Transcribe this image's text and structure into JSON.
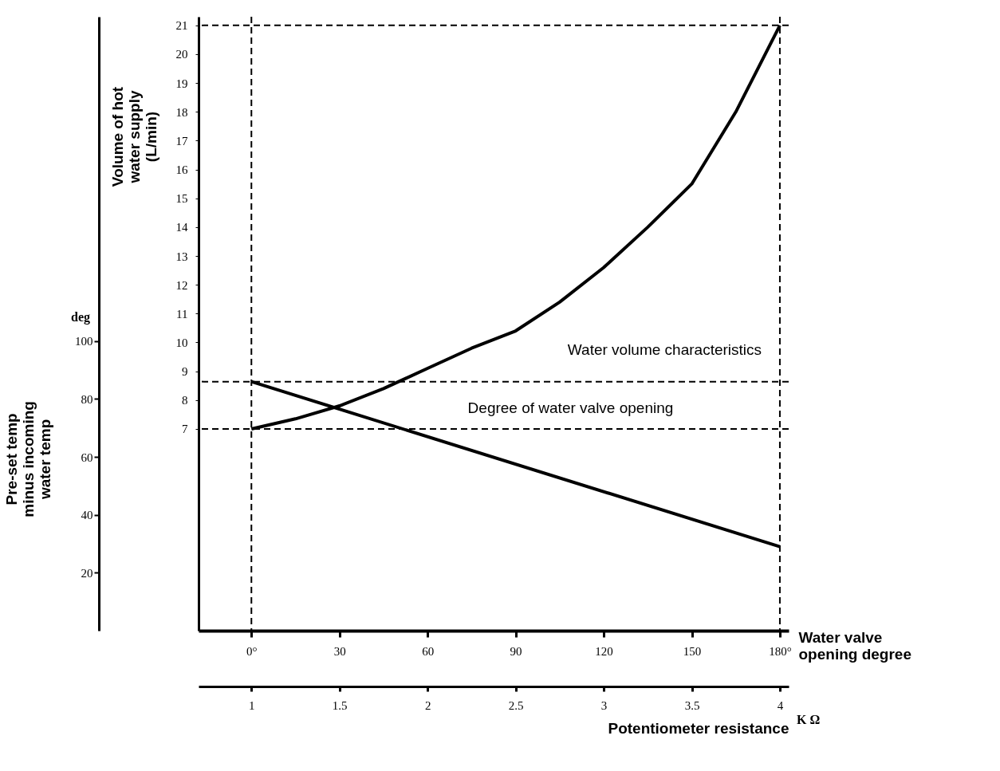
{
  "chart_data": {
    "type": "line",
    "xlabel": "Water valve opening degree",
    "ylabel": "Volume of hot water supply (L/min)",
    "y2label": "Pre-set temp minus incoming water temp",
    "x2label": "Potentiometer resistance",
    "annotations": [
      "deg",
      "K Ω"
    ],
    "series": [
      {
        "name": "Water volume characteristics",
        "color": "#000000",
        "x": [
          0,
          15,
          30,
          45,
          60,
          75,
          90,
          105,
          120,
          135,
          150,
          165,
          180
        ],
        "values": [
          7.0,
          7.35,
          7.8,
          8.4,
          9.1,
          9.8,
          10.4,
          11.4,
          12.6,
          14.0,
          15.5,
          18.0,
          21.0
        ]
      },
      {
        "name": "Degree of water valve opening",
        "color": "#000000",
        "axis": "y2",
        "x": [
          0,
          180
        ],
        "values": [
          86,
          29
        ]
      }
    ],
    "xlim": [
      -18,
      183
    ],
    "xticks": [
      {
        "value": 0,
        "label": "0°"
      },
      30,
      60,
      90,
      120,
      150,
      {
        "value": 180,
        "label": "180°"
      }
    ],
    "x2lim": [
      0.7,
      4.05
    ],
    "x2ticks": [
      1,
      1.5,
      2,
      2.5,
      3,
      3.5,
      4
    ],
    "ylim": [
      0,
      21.3
    ],
    "yticks": [
      7,
      8,
      9,
      10,
      11,
      12,
      13,
      14,
      15,
      16,
      17,
      18,
      19,
      20,
      21
    ],
    "y2lim": [
      0,
      212
    ],
    "y2ticks": [
      20,
      40,
      60,
      80,
      100
    ],
    "ref_lines": [
      {
        "axis": "x",
        "value": 0,
        "line_style": "dashed"
      },
      {
        "axis": "x",
        "value": 180,
        "line_style": "dashed"
      },
      {
        "axis": "y",
        "value": 7,
        "line_style": "dashed"
      },
      {
        "axis": "y",
        "value": 21,
        "line_style": "dashed"
      },
      {
        "axis": "y2",
        "value": 86,
        "line_style": "dashed"
      }
    ],
    "grid": false,
    "legend": false,
    "marker": "none",
    "line_style": "solid"
  }
}
